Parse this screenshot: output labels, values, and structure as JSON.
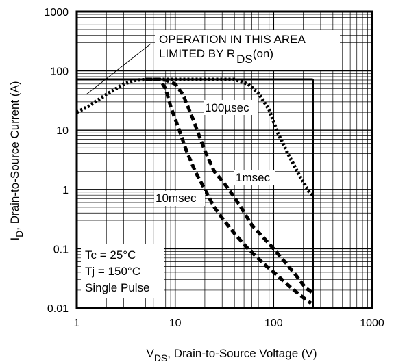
{
  "chart_data": {
    "type": "line",
    "x_scale": "log",
    "y_scale": "log",
    "xlim": [
      1,
      1000
    ],
    "ylim": [
      0.01,
      1000
    ],
    "grid": true,
    "x_ticks": [
      "1",
      "10",
      "100",
      "1000"
    ],
    "y_ticks": [
      "1000",
      "100",
      "10",
      "1",
      "0.1",
      "0.01"
    ],
    "xlabel": {
      "main": "V",
      "sub": "DS",
      "rest": ", Drain-to-Source Voltage (V)"
    },
    "ylabel": {
      "main": "I",
      "sub": "D",
      "rest": ",  Drain-to-Source Current (A)"
    },
    "annotations": {
      "rds_line1": "OPERATION IN THIS AREA",
      "rds_line2_prefix": "LIMITED BY R",
      "rds_line2_sub": "DS",
      "rds_line2_suffix": "(on)",
      "label_100us": "100µsec",
      "label_1ms": "1msec",
      "label_10ms": "10msec",
      "cond_tc": "Tc = 25°C",
      "cond_tj": "Tj = 150°C",
      "cond_pulse": "Single Pulse"
    },
    "limits": {
      "current_limit_a": 72,
      "voltage_limit_v": 250
    },
    "series": [
      {
        "label_key": "label_100us",
        "style": "dotted-thick",
        "x": [
          1.0,
          1.3,
          2.0,
          3.0,
          4.0,
          6.0,
          10,
          20,
          40,
          55,
          70,
          90,
          110,
          140,
          180,
          230,
          250
        ],
        "y": [
          20,
          25,
          40,
          60,
          70,
          72,
          72,
          72,
          72,
          60,
          42,
          22,
          9,
          4,
          1.8,
          0.9,
          0.8
        ]
      },
      {
        "label_key": "label_1ms",
        "style": "dashed-thick",
        "x": [
          6.0,
          8.0,
          10,
          12,
          15,
          20,
          25,
          30,
          35,
          45,
          60,
          80,
          100,
          130,
          170,
          210,
          250
        ],
        "y": [
          72,
          70,
          60,
          40,
          16,
          4.5,
          2.0,
          1.4,
          1.0,
          0.55,
          0.25,
          0.15,
          0.1,
          0.06,
          0.035,
          0.022,
          0.018
        ]
      },
      {
        "label_key": "label_10ms",
        "style": "dashed-thick",
        "x": [
          5.0,
          7.0,
          8.0,
          9.0,
          11,
          13,
          16,
          20,
          25,
          30,
          40,
          55,
          80,
          110,
          150,
          200,
          240
        ],
        "y": [
          72,
          72,
          50,
          25,
          10,
          4.5,
          2.0,
          1.0,
          0.5,
          0.33,
          0.18,
          0.1,
          0.055,
          0.035,
          0.022,
          0.015,
          0.012
        ]
      }
    ]
  }
}
